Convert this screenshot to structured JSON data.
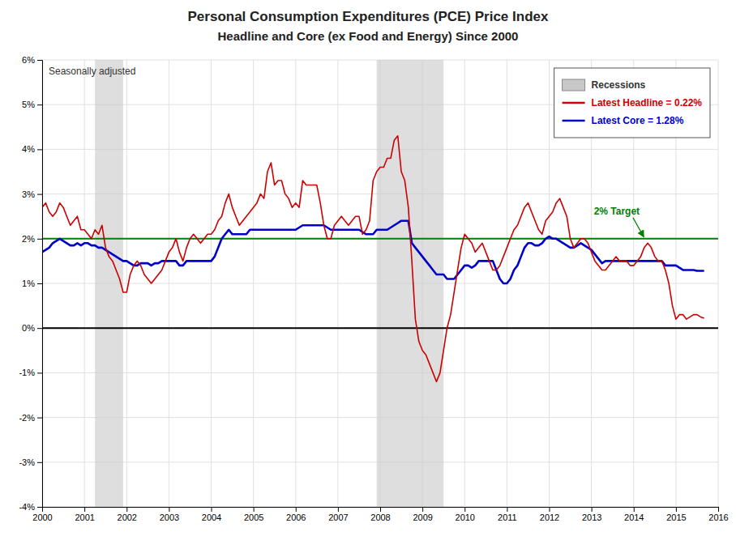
{
  "chart_data": {
    "type": "line",
    "title": "Personal Consumption Expenditures (PCE) Price Index",
    "subtitle": "Headline and Core (ex Food and Energy) Since 2000",
    "annotations": [
      {
        "text": "Seasonally adjusted"
      }
    ],
    "xlim": [
      2000,
      2016
    ],
    "ylim": [
      -4,
      6
    ],
    "xticks": [
      2000,
      2001,
      2002,
      2003,
      2004,
      2005,
      2006,
      2007,
      2008,
      2009,
      2010,
      2011,
      2012,
      2013,
      2014,
      2015,
      2016
    ],
    "yticks": [
      {
        "value": -4,
        "label": "-4%"
      },
      {
        "value": -3,
        "label": "-3%"
      },
      {
        "value": -2,
        "label": "-2%"
      },
      {
        "value": -1,
        "label": "-1%"
      },
      {
        "value": 0,
        "label": "0%"
      },
      {
        "value": 1,
        "label": "1%"
      },
      {
        "value": 2,
        "label": "2%"
      },
      {
        "value": 3,
        "label": "3%"
      },
      {
        "value": 4,
        "label": "4%"
      },
      {
        "value": 5,
        "label": "5%"
      },
      {
        "value": 6,
        "label": "6%"
      }
    ],
    "grid": true,
    "legend": "upper right",
    "shaded_ranges": {
      "name": "Recessions",
      "color": "#c8c8c8",
      "ranges": [
        [
          2001.25,
          2001.917
        ],
        [
          2007.917,
          2009.5
        ]
      ]
    },
    "reference_lines": [
      {
        "value": 0,
        "color": "#000000"
      },
      {
        "value": 2.0,
        "label": "2% Target",
        "color": "#008000"
      }
    ],
    "x": [
      2000.0,
      2000.083,
      2000.167,
      2000.25,
      2000.333,
      2000.417,
      2000.5,
      2000.583,
      2000.667,
      2000.75,
      2000.833,
      2000.917,
      2001.0,
      2001.083,
      2001.167,
      2001.25,
      2001.333,
      2001.417,
      2001.5,
      2001.583,
      2001.667,
      2001.75,
      2001.833,
      2001.917,
      2002.0,
      2002.083,
      2002.167,
      2002.25,
      2002.333,
      2002.417,
      2002.5,
      2002.583,
      2002.667,
      2002.75,
      2002.833,
      2002.917,
      2003.0,
      2003.083,
      2003.167,
      2003.25,
      2003.333,
      2003.417,
      2003.5,
      2003.583,
      2003.667,
      2003.75,
      2003.833,
      2003.917,
      2004.0,
      2004.083,
      2004.167,
      2004.25,
      2004.333,
      2004.417,
      2004.5,
      2004.583,
      2004.667,
      2004.75,
      2004.833,
      2004.917,
      2005.0,
      2005.083,
      2005.167,
      2005.25,
      2005.333,
      2005.417,
      2005.5,
      2005.583,
      2005.667,
      2005.75,
      2005.833,
      2005.917,
      2006.0,
      2006.083,
      2006.167,
      2006.25,
      2006.333,
      2006.417,
      2006.5,
      2006.583,
      2006.667,
      2006.75,
      2006.833,
      2006.917,
      2007.0,
      2007.083,
      2007.167,
      2007.25,
      2007.333,
      2007.417,
      2007.5,
      2007.583,
      2007.667,
      2007.75,
      2007.833,
      2007.917,
      2008.0,
      2008.083,
      2008.167,
      2008.25,
      2008.333,
      2008.417,
      2008.5,
      2008.583,
      2008.667,
      2008.75,
      2008.833,
      2008.917,
      2009.0,
      2009.083,
      2009.167,
      2009.25,
      2009.333,
      2009.417,
      2009.5,
      2009.583,
      2009.667,
      2009.75,
      2009.833,
      2009.917,
      2010.0,
      2010.083,
      2010.167,
      2010.25,
      2010.333,
      2010.417,
      2010.5,
      2010.583,
      2010.667,
      2010.75,
      2010.833,
      2010.917,
      2011.0,
      2011.083,
      2011.167,
      2011.25,
      2011.333,
      2011.417,
      2011.5,
      2011.583,
      2011.667,
      2011.75,
      2011.833,
      2011.917,
      2012.0,
      2012.083,
      2012.167,
      2012.25,
      2012.333,
      2012.417,
      2012.5,
      2012.583,
      2012.667,
      2012.75,
      2012.833,
      2012.917,
      2013.0,
      2013.083,
      2013.167,
      2013.25,
      2013.333,
      2013.417,
      2013.5,
      2013.583,
      2013.667,
      2013.75,
      2013.833,
      2013.917,
      2014.0,
      2014.083,
      2014.167,
      2014.25,
      2014.333,
      2014.417,
      2014.5,
      2014.583,
      2014.667,
      2014.75,
      2014.833,
      2014.917,
      2015.0,
      2015.083,
      2015.167,
      2015.25,
      2015.333,
      2015.417,
      2015.5,
      2015.583,
      2015.667
    ],
    "series": [
      {
        "name": "Latest Headline = 0.22%",
        "color": "#cc0000",
        "values": [
          2.7,
          2.8,
          2.6,
          2.5,
          2.6,
          2.8,
          2.7,
          2.5,
          2.3,
          2.4,
          2.5,
          2.2,
          2.2,
          2.1,
          2.0,
          2.2,
          2.1,
          2.3,
          1.8,
          1.6,
          1.5,
          1.3,
          1.1,
          0.8,
          0.8,
          1.2,
          1.4,
          1.5,
          1.4,
          1.2,
          1.1,
          1.0,
          1.1,
          1.2,
          1.3,
          1.5,
          1.7,
          1.8,
          2.0,
          1.7,
          1.5,
          1.8,
          2.0,
          2.1,
          2.0,
          1.9,
          2.0,
          2.1,
          2.1,
          2.2,
          2.4,
          2.5,
          2.8,
          3.0,
          2.7,
          2.5,
          2.3,
          2.4,
          2.5,
          2.6,
          2.7,
          2.8,
          3.0,
          2.9,
          3.5,
          3.7,
          3.2,
          3.3,
          3.3,
          3.0,
          2.9,
          2.7,
          2.8,
          2.7,
          3.3,
          3.2,
          3.2,
          3.2,
          3.2,
          2.8,
          2.3,
          2.0,
          2.0,
          2.3,
          2.4,
          2.5,
          2.4,
          2.3,
          2.4,
          2.5,
          2.5,
          2.1,
          2.2,
          2.4,
          3.3,
          3.5,
          3.6,
          3.6,
          3.8,
          3.8,
          4.2,
          4.3,
          3.5,
          3.3,
          2.7,
          1.5,
          0.2,
          -0.3,
          -0.5,
          -0.6,
          -0.8,
          -1.0,
          -1.2,
          -1.0,
          -0.5,
          0.0,
          0.3,
          0.8,
          1.3,
          1.8,
          2.1,
          2.0,
          1.9,
          1.7,
          1.8,
          1.9,
          1.7,
          1.5,
          1.3,
          1.3,
          1.4,
          1.6,
          1.8,
          2.0,
          2.2,
          2.3,
          2.5,
          2.7,
          2.8,
          2.6,
          2.4,
          2.2,
          2.1,
          2.4,
          2.5,
          2.6,
          2.8,
          2.9,
          2.7,
          2.5,
          2.0,
          1.8,
          1.9,
          2.0,
          2.0,
          1.9,
          1.7,
          1.5,
          1.4,
          1.3,
          1.3,
          1.4,
          1.5,
          1.6,
          1.5,
          1.5,
          1.5,
          1.4,
          1.4,
          1.5,
          1.6,
          1.8,
          1.9,
          1.8,
          1.6,
          1.5,
          1.5,
          1.3,
          1.0,
          0.5,
          0.2,
          0.3,
          0.3,
          0.2,
          0.25,
          0.3,
          0.3,
          0.25,
          0.22
        ]
      },
      {
        "name": "Latest Core = 1.28%",
        "color": "#0000cc",
        "values": [
          1.7,
          1.75,
          1.8,
          1.9,
          1.95,
          2.0,
          1.95,
          1.9,
          1.85,
          1.85,
          1.9,
          1.85,
          1.9,
          1.9,
          1.85,
          1.85,
          1.8,
          1.8,
          1.75,
          1.7,
          1.65,
          1.6,
          1.55,
          1.5,
          1.5,
          1.45,
          1.4,
          1.4,
          1.45,
          1.45,
          1.45,
          1.4,
          1.45,
          1.45,
          1.5,
          1.5,
          1.5,
          1.5,
          1.5,
          1.4,
          1.4,
          1.5,
          1.5,
          1.5,
          1.5,
          1.5,
          1.5,
          1.5,
          1.5,
          1.6,
          1.8,
          2.0,
          2.1,
          2.2,
          2.1,
          2.1,
          2.1,
          2.1,
          2.1,
          2.2,
          2.2,
          2.2,
          2.2,
          2.2,
          2.2,
          2.2,
          2.2,
          2.2,
          2.2,
          2.2,
          2.2,
          2.2,
          2.2,
          2.25,
          2.3,
          2.3,
          2.3,
          2.3,
          2.3,
          2.3,
          2.3,
          2.25,
          2.2,
          2.2,
          2.2,
          2.2,
          2.2,
          2.2,
          2.2,
          2.2,
          2.2,
          2.15,
          2.1,
          2.1,
          2.1,
          2.2,
          2.2,
          2.2,
          2.2,
          2.25,
          2.3,
          2.35,
          2.4,
          2.4,
          2.4,
          1.9,
          1.8,
          1.7,
          1.6,
          1.5,
          1.4,
          1.3,
          1.2,
          1.2,
          1.2,
          1.1,
          1.1,
          1.1,
          1.2,
          1.3,
          1.4,
          1.4,
          1.35,
          1.4,
          1.5,
          1.5,
          1.5,
          1.5,
          1.5,
          1.3,
          1.1,
          1.0,
          1.0,
          1.1,
          1.3,
          1.4,
          1.6,
          1.8,
          1.9,
          1.9,
          1.85,
          1.85,
          1.9,
          2.0,
          2.05,
          2.0,
          2.0,
          1.95,
          1.9,
          1.85,
          1.8,
          1.8,
          1.85,
          1.9,
          1.85,
          1.8,
          1.75,
          1.65,
          1.55,
          1.45,
          1.5,
          1.5,
          1.5,
          1.5,
          1.5,
          1.5,
          1.5,
          1.5,
          1.5,
          1.5,
          1.5,
          1.5,
          1.5,
          1.5,
          1.5,
          1.5,
          1.5,
          1.4,
          1.4,
          1.4,
          1.4,
          1.35,
          1.3,
          1.3,
          1.3,
          1.3,
          1.28,
          1.28,
          1.28
        ]
      }
    ]
  }
}
